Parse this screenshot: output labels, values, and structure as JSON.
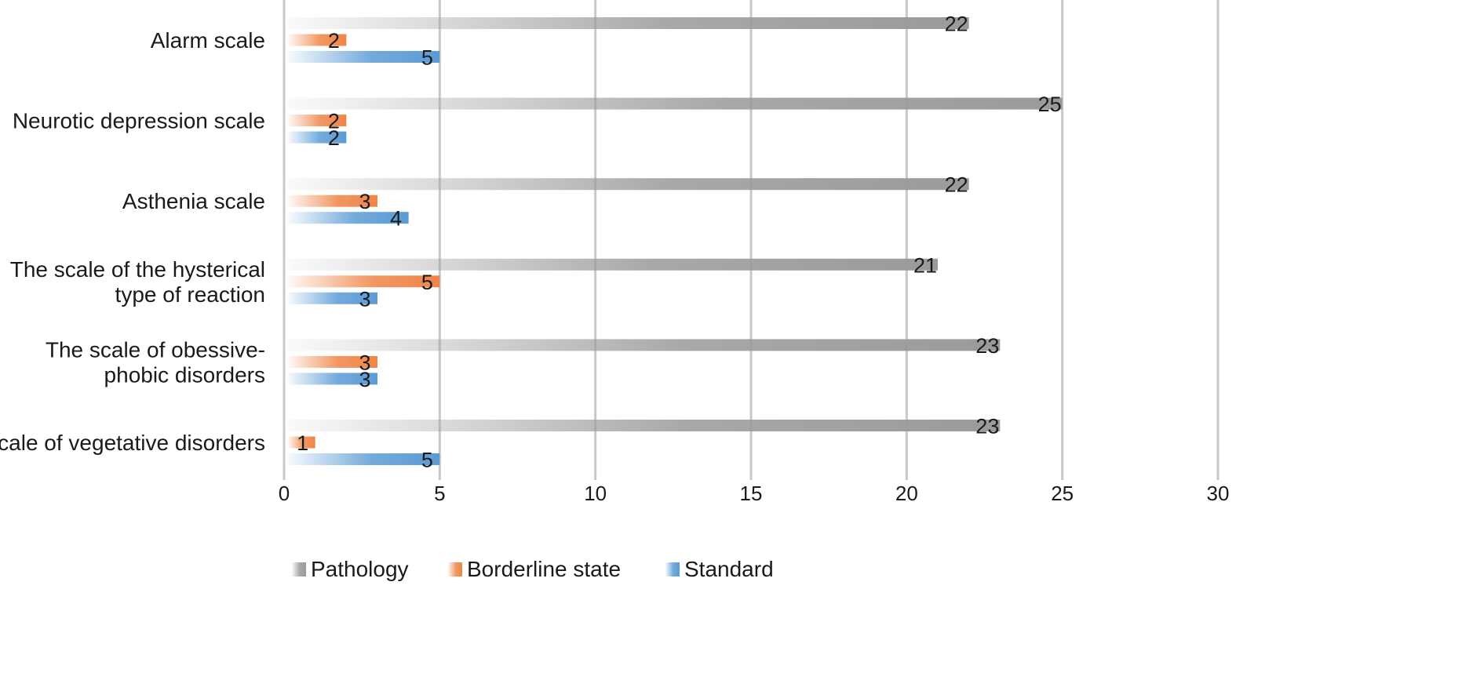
{
  "chart_data": {
    "type": "bar",
    "orientation": "horizontal",
    "categories": [
      "Alarm scale",
      "Neurotic depression scale",
      "Asthenia scale",
      "The scale of the hysterical type of reaction",
      "The scale of obessive-phobic disorders",
      "Scale of vegetative disorders"
    ],
    "category_lines": [
      [
        "Alarm scale"
      ],
      [
        "Neurotic depression scale"
      ],
      [
        "Asthenia scale"
      ],
      [
        "The scale of the hysterical",
        "type of reaction"
      ],
      [
        "The scale of obessive-",
        "phobic disorders"
      ],
      [
        "Scale of vegetative disorders"
      ]
    ],
    "series": [
      {
        "name": "Pathology",
        "color": "#9a9a9a",
        "values": [
          22,
          25,
          22,
          21,
          23,
          23
        ]
      },
      {
        "name": "Borderline state",
        "color": "#ef8548",
        "values": [
          2,
          2,
          3,
          5,
          3,
          1
        ]
      },
      {
        "name": "Standard",
        "color": "#5b9bd5",
        "values": [
          5,
          2,
          4,
          3,
          3,
          5
        ]
      }
    ],
    "xlim": [
      0,
      30
    ],
    "x_ticks": [
      0,
      5,
      10,
      15,
      20,
      25,
      30
    ],
    "grid": true,
    "legend": "bottom",
    "data_labels": true
  }
}
